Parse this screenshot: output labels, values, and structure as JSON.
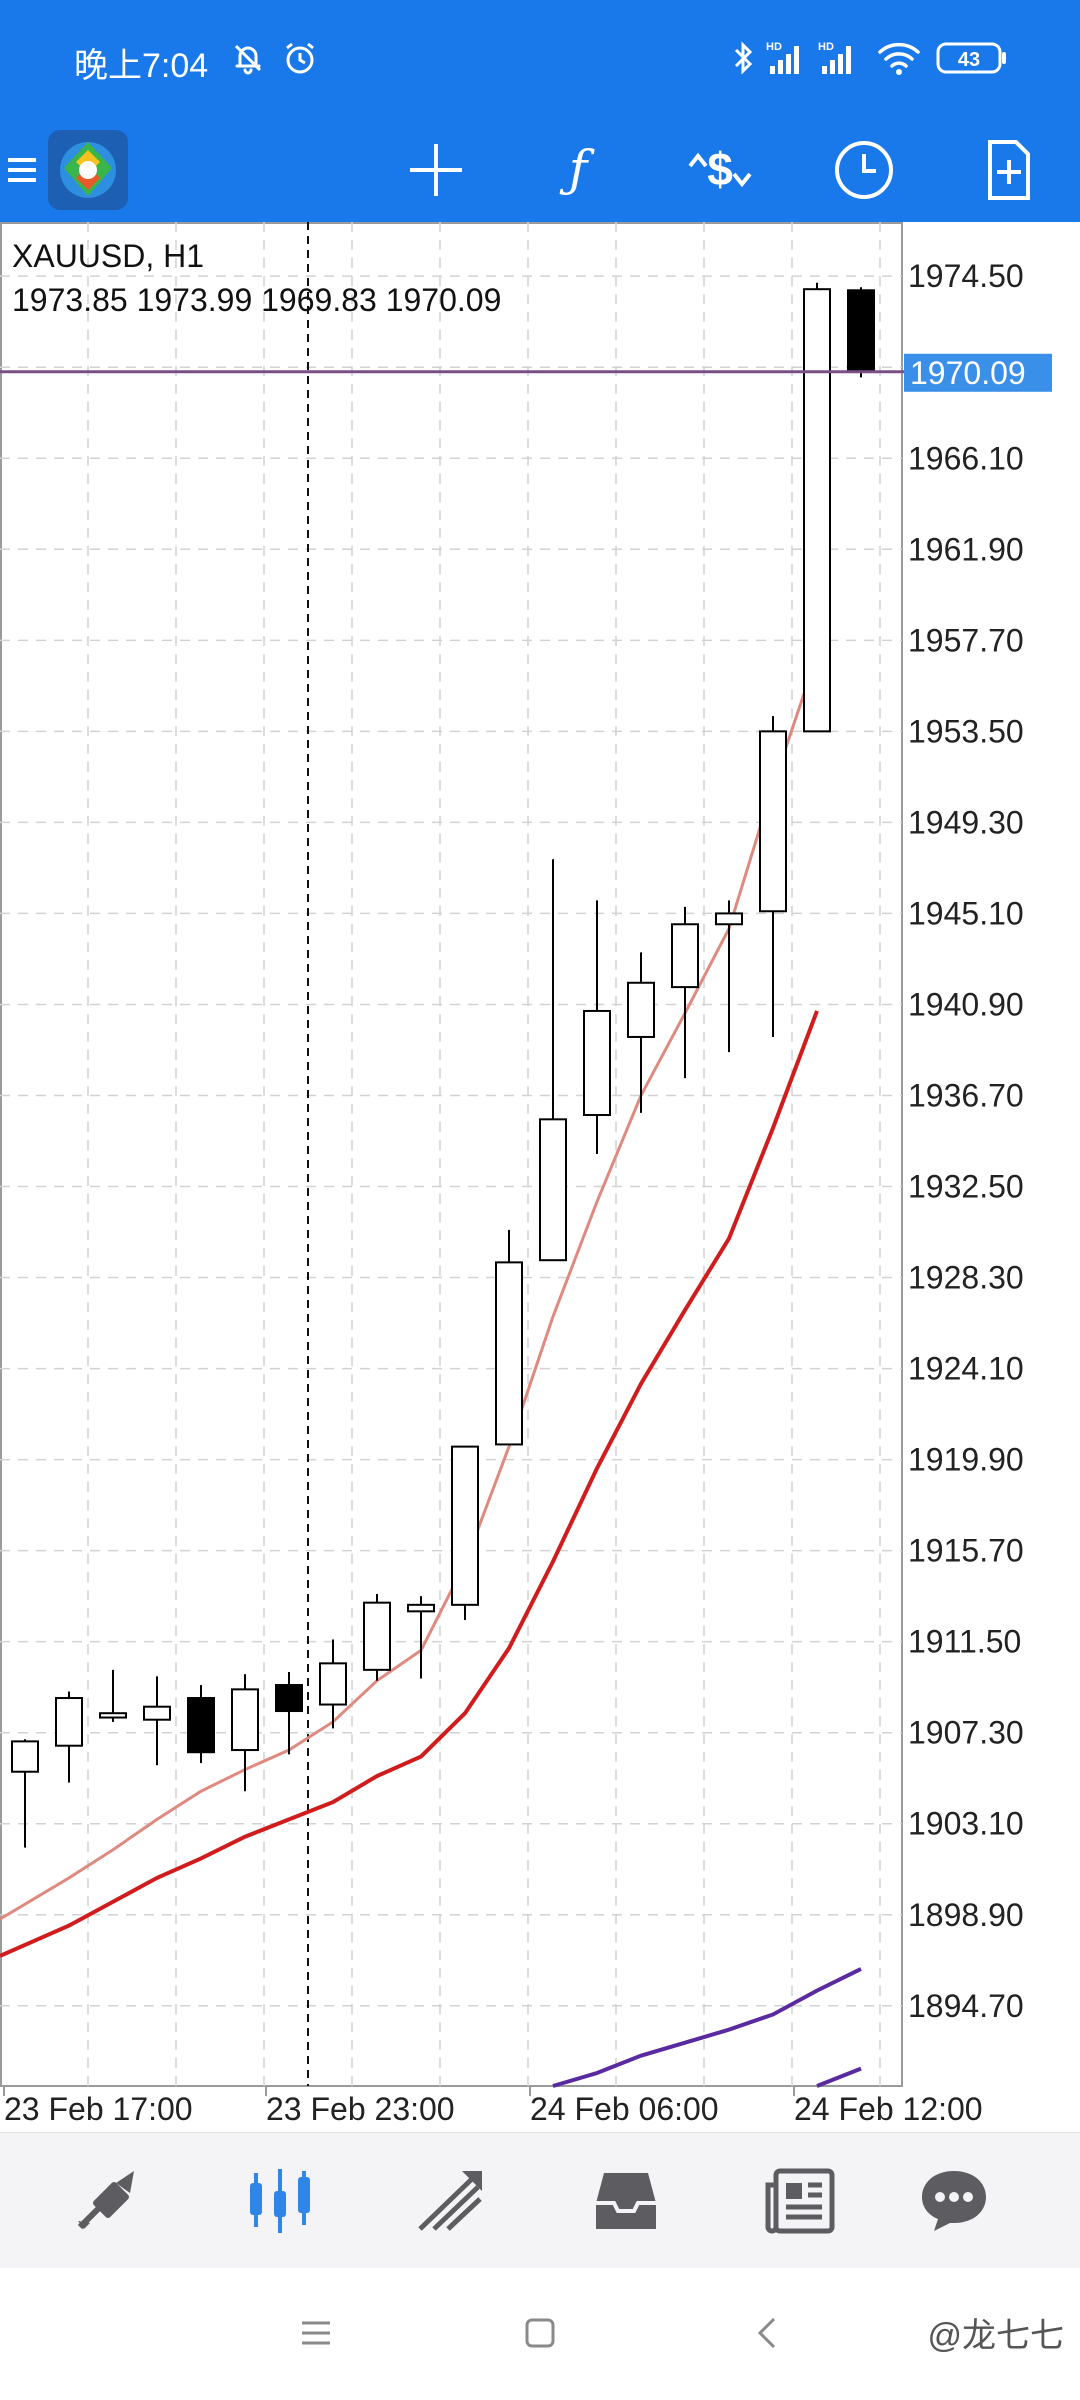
{
  "status_bar": {
    "time": "晚上7:04",
    "battery": "43",
    "icons": [
      "mute-bell-icon",
      "alarm-icon",
      "bluetooth-icon",
      "signal-hd-icon",
      "signal-hd-icon",
      "wifi-icon",
      "battery-icon"
    ]
  },
  "toolbar": {
    "icons": [
      "menu-icon",
      "app-logo-icon",
      "crosshair-icon",
      "indicators-f-icon",
      "trade-dollar-icon",
      "timeframe-clock-icon",
      "new-order-icon"
    ]
  },
  "chart": {
    "symbol_timeframe": "XAUUSD, H1",
    "ohlc": "1973.85 1973.99 1969.83 1970.09",
    "current_price": "1970.09",
    "price_labels": [
      "1974.50",
      "1966.10",
      "1961.90",
      "1957.70",
      "1953.50",
      "1949.30",
      "1945.10",
      "1940.90",
      "1936.70",
      "1932.50",
      "1928.30",
      "1924.10",
      "1919.90",
      "1915.70",
      "1911.50",
      "1907.30",
      "1903.10",
      "1898.90",
      "1894.70"
    ],
    "time_labels": [
      "23 Feb 17:00",
      "23 Feb 23:00",
      "24 Feb 06:00",
      "24 Feb 12:00"
    ],
    "colors": {
      "bg": "#ffffff",
      "grid": "#d2d2d2",
      "candle": "#000000",
      "ma_fast": "#df8a80",
      "ma_slow": "#d01c1c",
      "ma_purple": "#5a2aa0",
      "price_line": "#7a4f86",
      "price_tag": "#3a8fe8"
    }
  },
  "chart_data": {
    "type": "candlestick",
    "title": "XAUUSD, H1",
    "x_tick_labels": [
      "23 Feb 17:00",
      "23 Feb 23:00",
      "24 Feb 06:00",
      "24 Feb 12:00"
    ],
    "y_range": [
      1891.0,
      1977.0
    ],
    "y_tick_step": 4.2,
    "grid": true,
    "candles": [
      {
        "o": 1905.5,
        "h": 1907.0,
        "l": 1902.0,
        "c": 1906.9
      },
      {
        "o": 1906.7,
        "h": 1909.2,
        "l": 1905.0,
        "c": 1908.9
      },
      {
        "o": 1908.0,
        "h": 1910.2,
        "l": 1907.8,
        "c": 1908.2
      },
      {
        "o": 1907.9,
        "h": 1909.9,
        "l": 1905.8,
        "c": 1908.5
      },
      {
        "o": 1908.9,
        "h": 1909.5,
        "l": 1905.9,
        "c": 1906.4
      },
      {
        "o": 1906.5,
        "h": 1910.0,
        "l": 1904.6,
        "c": 1909.3
      },
      {
        "o": 1909.5,
        "h": 1910.1,
        "l": 1906.3,
        "c": 1908.3
      },
      {
        "o": 1908.6,
        "h": 1911.6,
        "l": 1907.5,
        "c": 1910.5
      },
      {
        "o": 1910.2,
        "h": 1913.7,
        "l": 1909.7,
        "c": 1913.3
      },
      {
        "o": 1912.9,
        "h": 1913.6,
        "l": 1909.8,
        "c": 1913.2
      },
      {
        "o": 1913.2,
        "h": 1920.5,
        "l": 1912.5,
        "c": 1920.5
      },
      {
        "o": 1920.6,
        "h": 1930.5,
        "l": 1920.6,
        "c": 1929.0
      },
      {
        "o": 1929.1,
        "h": 1947.6,
        "l": 1929.1,
        "c": 1935.6
      },
      {
        "o": 1935.8,
        "h": 1945.7,
        "l": 1934.0,
        "c": 1940.6
      },
      {
        "o": 1939.4,
        "h": 1943.3,
        "l": 1935.9,
        "c": 1941.9
      },
      {
        "o": 1941.7,
        "h": 1945.4,
        "l": 1937.5,
        "c": 1944.6
      },
      {
        "o": 1944.6,
        "h": 1945.7,
        "l": 1938.7,
        "c": 1945.1
      },
      {
        "o": 1945.2,
        "h": 1954.2,
        "l": 1939.4,
        "c": 1953.5
      },
      {
        "o": 1953.5,
        "h": 1974.2,
        "l": 1953.5,
        "c": 1973.9
      },
      {
        "o": 1973.85,
        "h": 1973.99,
        "l": 1969.83,
        "c": 1970.09
      }
    ],
    "series": [
      {
        "type": "line",
        "values": [
          1898.7,
          1900.6,
          1901.9,
          1903.3,
          1904.6,
          1905.6,
          1906.5,
          1907.8,
          1909.7,
          1911.1,
          1915.1,
          1920.5,
          1926.5,
          1931.8,
          1936.7,
          1940.5,
          1944.4,
          1951.0,
          1957.0,
          null
        ]
      },
      {
        "type": "line",
        "values": [
          1897.0,
          1898.4,
          1899.5,
          1900.6,
          1901.5,
          1902.5,
          1903.3,
          1904.1,
          1905.3,
          1906.2,
          1908.2,
          1911.2,
          1915.2,
          1919.5,
          1923.4,
          1926.8,
          1930.1,
          1935.2,
          1940.6,
          null
        ]
      },
      {
        "type": "line",
        "values": [
          null,
          null,
          null,
          null,
          null,
          null,
          null,
          null,
          null,
          null,
          null,
          null,
          1890.9,
          1891.6,
          1892.4,
          1893.0,
          1893.6,
          1894.3,
          1895.4,
          1896.4
        ]
      },
      {
        "type": "line",
        "values": [
          null,
          null,
          null,
          null,
          null,
          null,
          null,
          null,
          null,
          null,
          null,
          null,
          null,
          null,
          null,
          null,
          null,
          null,
          1891.0,
          1891.8
        ]
      }
    ],
    "current_price": 1970.09
  },
  "bottom_nav": {
    "icons": [
      "quotes-icon",
      "chart-icon",
      "trade-icon",
      "history-icon",
      "news-icon",
      "chat-icon"
    ],
    "active": "chart-icon"
  },
  "system_nav": {
    "watermark": "@龙七七"
  }
}
